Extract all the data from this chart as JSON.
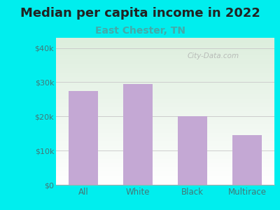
{
  "title": "Median per capita income in 2022",
  "subtitle": "East Chester, TN",
  "categories": [
    "All",
    "White",
    "Black",
    "Multirace"
  ],
  "values": [
    27500,
    29500,
    20000,
    14500
  ],
  "bar_color": "#C4A8D4",
  "title_fontsize": 13,
  "subtitle_fontsize": 10,
  "subtitle_color": "#44AAAA",
  "background_outer": "#00EEEE",
  "background_inner_top": "#DDEEDD",
  "background_inner_bottom": "#FFFFFF",
  "yticks": [
    0,
    10000,
    20000,
    30000,
    40000
  ],
  "ytick_labels": [
    "$0",
    "$10k",
    "$20k",
    "$30k",
    "$40k"
  ],
  "ylim": [
    0,
    43000
  ],
  "grid_color": "#CCCCCC",
  "watermark": "City-Data.com",
  "tick_color": "#447777",
  "axis_line_color": "#AAAAAA",
  "title_color": "#222222"
}
